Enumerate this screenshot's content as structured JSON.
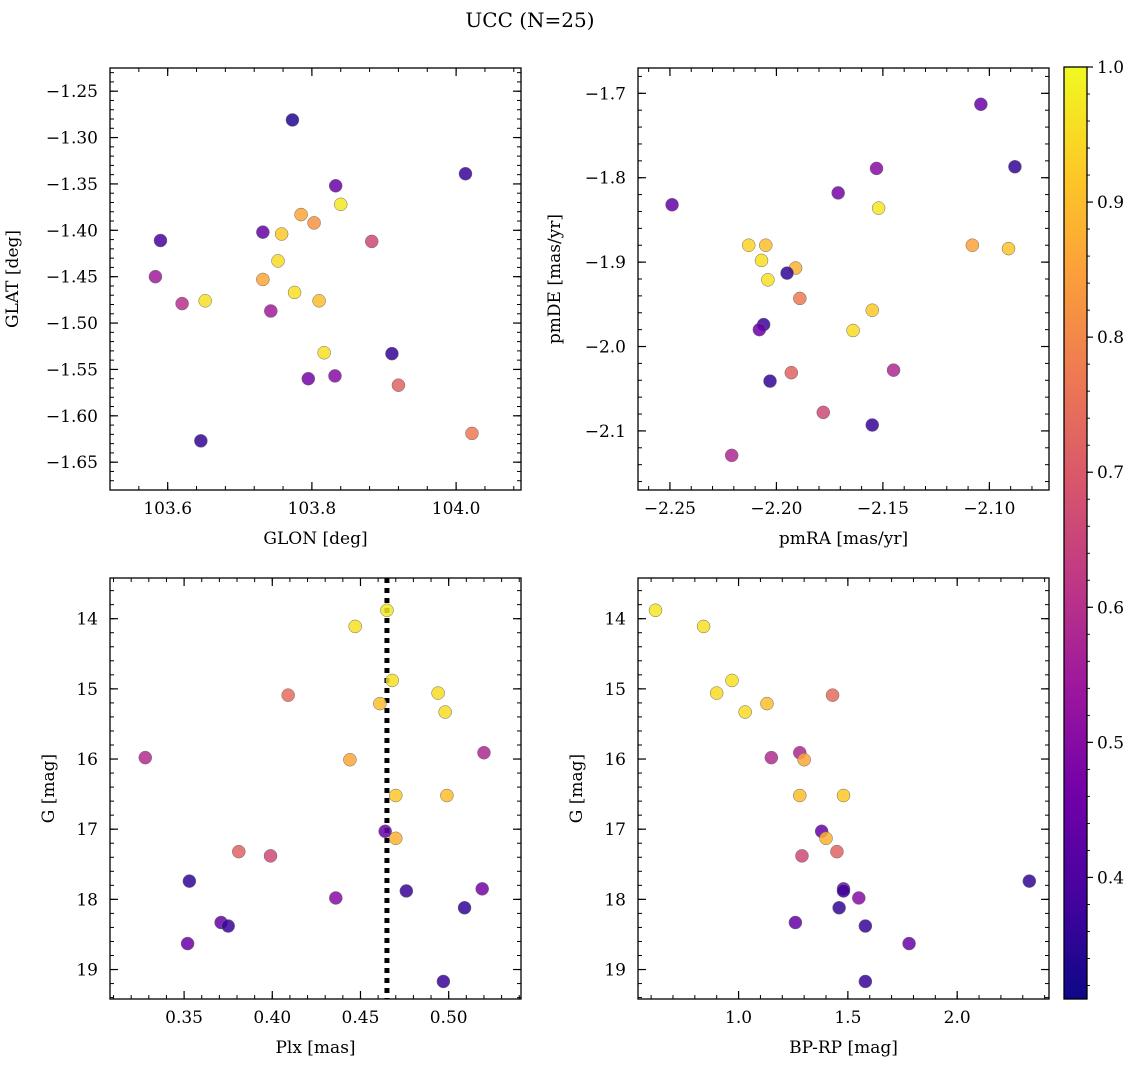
{
  "figure": {
    "title": "UCC (N=25)"
  },
  "chart_data": [
    {
      "type": "scatter",
      "xlabel": "GLON [deg]",
      "ylabel": "GLAT [deg]",
      "xlim": [
        103.52,
        104.09
      ],
      "ylim": [
        -1.68,
        -1.225
      ],
      "xticks": [
        103.6,
        103.8,
        104.0
      ],
      "yticks": [
        -1.25,
        -1.3,
        -1.35,
        -1.4,
        -1.45,
        -1.5,
        -1.55,
        -1.6,
        -1.65
      ],
      "points": [
        {
          "x": 103.773,
          "y": -1.281,
          "c": 0.34
        },
        {
          "x": 104.013,
          "y": -1.339,
          "c": 0.37
        },
        {
          "x": 103.833,
          "y": -1.352,
          "c": 0.45
        },
        {
          "x": 103.84,
          "y": -1.372,
          "c": 0.97
        },
        {
          "x": 103.785,
          "y": -1.383,
          "c": 0.86
        },
        {
          "x": 103.803,
          "y": -1.392,
          "c": 0.82
        },
        {
          "x": 103.732,
          "y": -1.402,
          "c": 0.44
        },
        {
          "x": 103.758,
          "y": -1.404,
          "c": 0.92
        },
        {
          "x": 103.59,
          "y": -1.411,
          "c": 0.39
        },
        {
          "x": 103.883,
          "y": -1.412,
          "c": 0.66
        },
        {
          "x": 103.753,
          "y": -1.433,
          "c": 0.95
        },
        {
          "x": 103.583,
          "y": -1.45,
          "c": 0.55
        },
        {
          "x": 103.732,
          "y": -1.453,
          "c": 0.86
        },
        {
          "x": 103.776,
          "y": -1.467,
          "c": 0.96
        },
        {
          "x": 103.652,
          "y": -1.476,
          "c": 0.96
        },
        {
          "x": 103.81,
          "y": -1.476,
          "c": 0.9
        },
        {
          "x": 103.62,
          "y": -1.479,
          "c": 0.6
        },
        {
          "x": 103.743,
          "y": -1.487,
          "c": 0.55
        },
        {
          "x": 103.817,
          "y": -1.532,
          "c": 0.96
        },
        {
          "x": 103.911,
          "y": -1.533,
          "c": 0.36
        },
        {
          "x": 103.832,
          "y": -1.557,
          "c": 0.5
        },
        {
          "x": 103.795,
          "y": -1.56,
          "c": 0.47
        },
        {
          "x": 103.92,
          "y": -1.567,
          "c": 0.72
        },
        {
          "x": 104.022,
          "y": -1.619,
          "c": 0.77
        },
        {
          "x": 103.646,
          "y": -1.627,
          "c": 0.36
        }
      ]
    },
    {
      "type": "scatter",
      "xlabel": "pmRA [mas/yr]",
      "ylabel": "pmDE [mas/yr]",
      "xlim": [
        -2.265,
        -2.072
      ],
      "ylim": [
        -2.17,
        -1.67
      ],
      "xticks": [
        -2.25,
        -2.2,
        -2.15,
        -2.1
      ],
      "yticks": [
        -1.7,
        -1.8,
        -1.9,
        -2.0,
        -2.1
      ],
      "points": [
        {
          "x": -2.104,
          "y": -1.713,
          "c": 0.45
        },
        {
          "x": -2.088,
          "y": -1.787,
          "c": 0.36
        },
        {
          "x": -2.153,
          "y": -1.789,
          "c": 0.5
        },
        {
          "x": -2.171,
          "y": -1.818,
          "c": 0.47
        },
        {
          "x": -2.249,
          "y": -1.832,
          "c": 0.44
        },
        {
          "x": -2.152,
          "y": -1.836,
          "c": 0.97
        },
        {
          "x": -2.213,
          "y": -1.88,
          "c": 0.94
        },
        {
          "x": -2.205,
          "y": -1.88,
          "c": 0.9
        },
        {
          "x": -2.108,
          "y": -1.88,
          "c": 0.85
        },
        {
          "x": -2.091,
          "y": -1.884,
          "c": 0.91
        },
        {
          "x": -2.207,
          "y": -1.898,
          "c": 0.96
        },
        {
          "x": -2.191,
          "y": -1.907,
          "c": 0.88
        },
        {
          "x": -2.195,
          "y": -1.913,
          "c": 0.36
        },
        {
          "x": -2.204,
          "y": -1.921,
          "c": 0.96
        },
        {
          "x": -2.189,
          "y": -1.943,
          "c": 0.77
        },
        {
          "x": -2.155,
          "y": -1.957,
          "c": 0.92
        },
        {
          "x": -2.206,
          "y": -1.974,
          "c": 0.37
        },
        {
          "x": -2.208,
          "y": -1.98,
          "c": 0.45
        },
        {
          "x": -2.164,
          "y": -1.981,
          "c": 0.95
        },
        {
          "x": -2.145,
          "y": -2.028,
          "c": 0.58
        },
        {
          "x": -2.193,
          "y": -2.031,
          "c": 0.72
        },
        {
          "x": -2.203,
          "y": -2.041,
          "c": 0.36
        },
        {
          "x": -2.178,
          "y": -2.078,
          "c": 0.66
        },
        {
          "x": -2.155,
          "y": -2.093,
          "c": 0.37
        },
        {
          "x": -2.221,
          "y": -2.129,
          "c": 0.58
        }
      ]
    },
    {
      "type": "scatter",
      "xlabel": "Plx [mas]",
      "ylabel": "G [mag]",
      "xlim": [
        0.308,
        0.541
      ],
      "ylim": [
        19.42,
        13.42
      ],
      "y_inverted": true,
      "xticks": [
        0.35,
        0.4,
        0.45,
        0.5
      ],
      "yticks": [
        14,
        15,
        16,
        17,
        18,
        19
      ],
      "vline": {
        "x": 0.465,
        "style": "dotted",
        "color": "#000000"
      },
      "points": [
        {
          "x": 0.465,
          "y": 13.88,
          "c": 0.97
        },
        {
          "x": 0.447,
          "y": 14.11,
          "c": 0.96
        },
        {
          "x": 0.468,
          "y": 14.88,
          "c": 0.96
        },
        {
          "x": 0.494,
          "y": 15.06,
          "c": 0.95
        },
        {
          "x": 0.409,
          "y": 15.09,
          "c": 0.74
        },
        {
          "x": 0.461,
          "y": 15.21,
          "c": 0.9
        },
        {
          "x": 0.498,
          "y": 15.33,
          "c": 0.95
        },
        {
          "x": 0.52,
          "y": 15.91,
          "c": 0.58
        },
        {
          "x": 0.328,
          "y": 15.98,
          "c": 0.59
        },
        {
          "x": 0.444,
          "y": 16.01,
          "c": 0.86
        },
        {
          "x": 0.47,
          "y": 16.52,
          "c": 0.92
        },
        {
          "x": 0.499,
          "y": 16.52,
          "c": 0.9
        },
        {
          "x": 0.464,
          "y": 17.03,
          "c": 0.44
        },
        {
          "x": 0.47,
          "y": 17.13,
          "c": 0.88
        },
        {
          "x": 0.381,
          "y": 17.32,
          "c": 0.72
        },
        {
          "x": 0.399,
          "y": 17.38,
          "c": 0.66
        },
        {
          "x": 0.353,
          "y": 17.74,
          "c": 0.36
        },
        {
          "x": 0.519,
          "y": 17.85,
          "c": 0.47
        },
        {
          "x": 0.476,
          "y": 17.88,
          "c": 0.37
        },
        {
          "x": 0.436,
          "y": 17.98,
          "c": 0.5
        },
        {
          "x": 0.509,
          "y": 18.12,
          "c": 0.36
        },
        {
          "x": 0.371,
          "y": 18.33,
          "c": 0.44
        },
        {
          "x": 0.375,
          "y": 18.38,
          "c": 0.37
        },
        {
          "x": 0.352,
          "y": 18.63,
          "c": 0.45
        },
        {
          "x": 0.497,
          "y": 19.17,
          "c": 0.37
        }
      ]
    },
    {
      "type": "scatter",
      "xlabel": "BP-RP [mag]",
      "ylabel": "G [mag]",
      "xlim": [
        0.54,
        2.42
      ],
      "ylim": [
        19.42,
        13.42
      ],
      "y_inverted": true,
      "xticks": [
        1.0,
        1.5,
        2.0
      ],
      "yticks": [
        14,
        15,
        16,
        17,
        18,
        19
      ],
      "points": [
        {
          "x": 0.62,
          "y": 13.88,
          "c": 0.97
        },
        {
          "x": 0.84,
          "y": 14.11,
          "c": 0.96
        },
        {
          "x": 0.97,
          "y": 14.88,
          "c": 0.96
        },
        {
          "x": 0.9,
          "y": 15.06,
          "c": 0.95
        },
        {
          "x": 1.43,
          "y": 15.09,
          "c": 0.74
        },
        {
          "x": 1.13,
          "y": 15.21,
          "c": 0.9
        },
        {
          "x": 1.03,
          "y": 15.33,
          "c": 0.95
        },
        {
          "x": 1.28,
          "y": 15.91,
          "c": 0.58
        },
        {
          "x": 1.15,
          "y": 15.98,
          "c": 0.59
        },
        {
          "x": 1.3,
          "y": 16.01,
          "c": 0.86
        },
        {
          "x": 1.28,
          "y": 16.52,
          "c": 0.9
        },
        {
          "x": 1.48,
          "y": 16.52,
          "c": 0.92
        },
        {
          "x": 1.38,
          "y": 17.03,
          "c": 0.44
        },
        {
          "x": 1.4,
          "y": 17.13,
          "c": 0.88
        },
        {
          "x": 1.45,
          "y": 17.32,
          "c": 0.72
        },
        {
          "x": 1.29,
          "y": 17.38,
          "c": 0.66
        },
        {
          "x": 2.33,
          "y": 17.74,
          "c": 0.36
        },
        {
          "x": 1.48,
          "y": 17.85,
          "c": 0.47
        },
        {
          "x": 1.48,
          "y": 17.88,
          "c": 0.37
        },
        {
          "x": 1.55,
          "y": 17.98,
          "c": 0.5
        },
        {
          "x": 1.46,
          "y": 18.12,
          "c": 0.36
        },
        {
          "x": 1.26,
          "y": 18.33,
          "c": 0.44
        },
        {
          "x": 1.58,
          "y": 18.38,
          "c": 0.37
        },
        {
          "x": 1.78,
          "y": 18.63,
          "c": 0.45
        },
        {
          "x": 1.58,
          "y": 19.17,
          "c": 0.37
        }
      ]
    }
  ],
  "colorbar": {
    "colormap": "plasma",
    "range": [
      0.31,
      1.0
    ],
    "ticks": [
      0.4,
      0.5,
      0.6,
      0.7,
      0.8,
      0.9,
      1.0
    ]
  }
}
